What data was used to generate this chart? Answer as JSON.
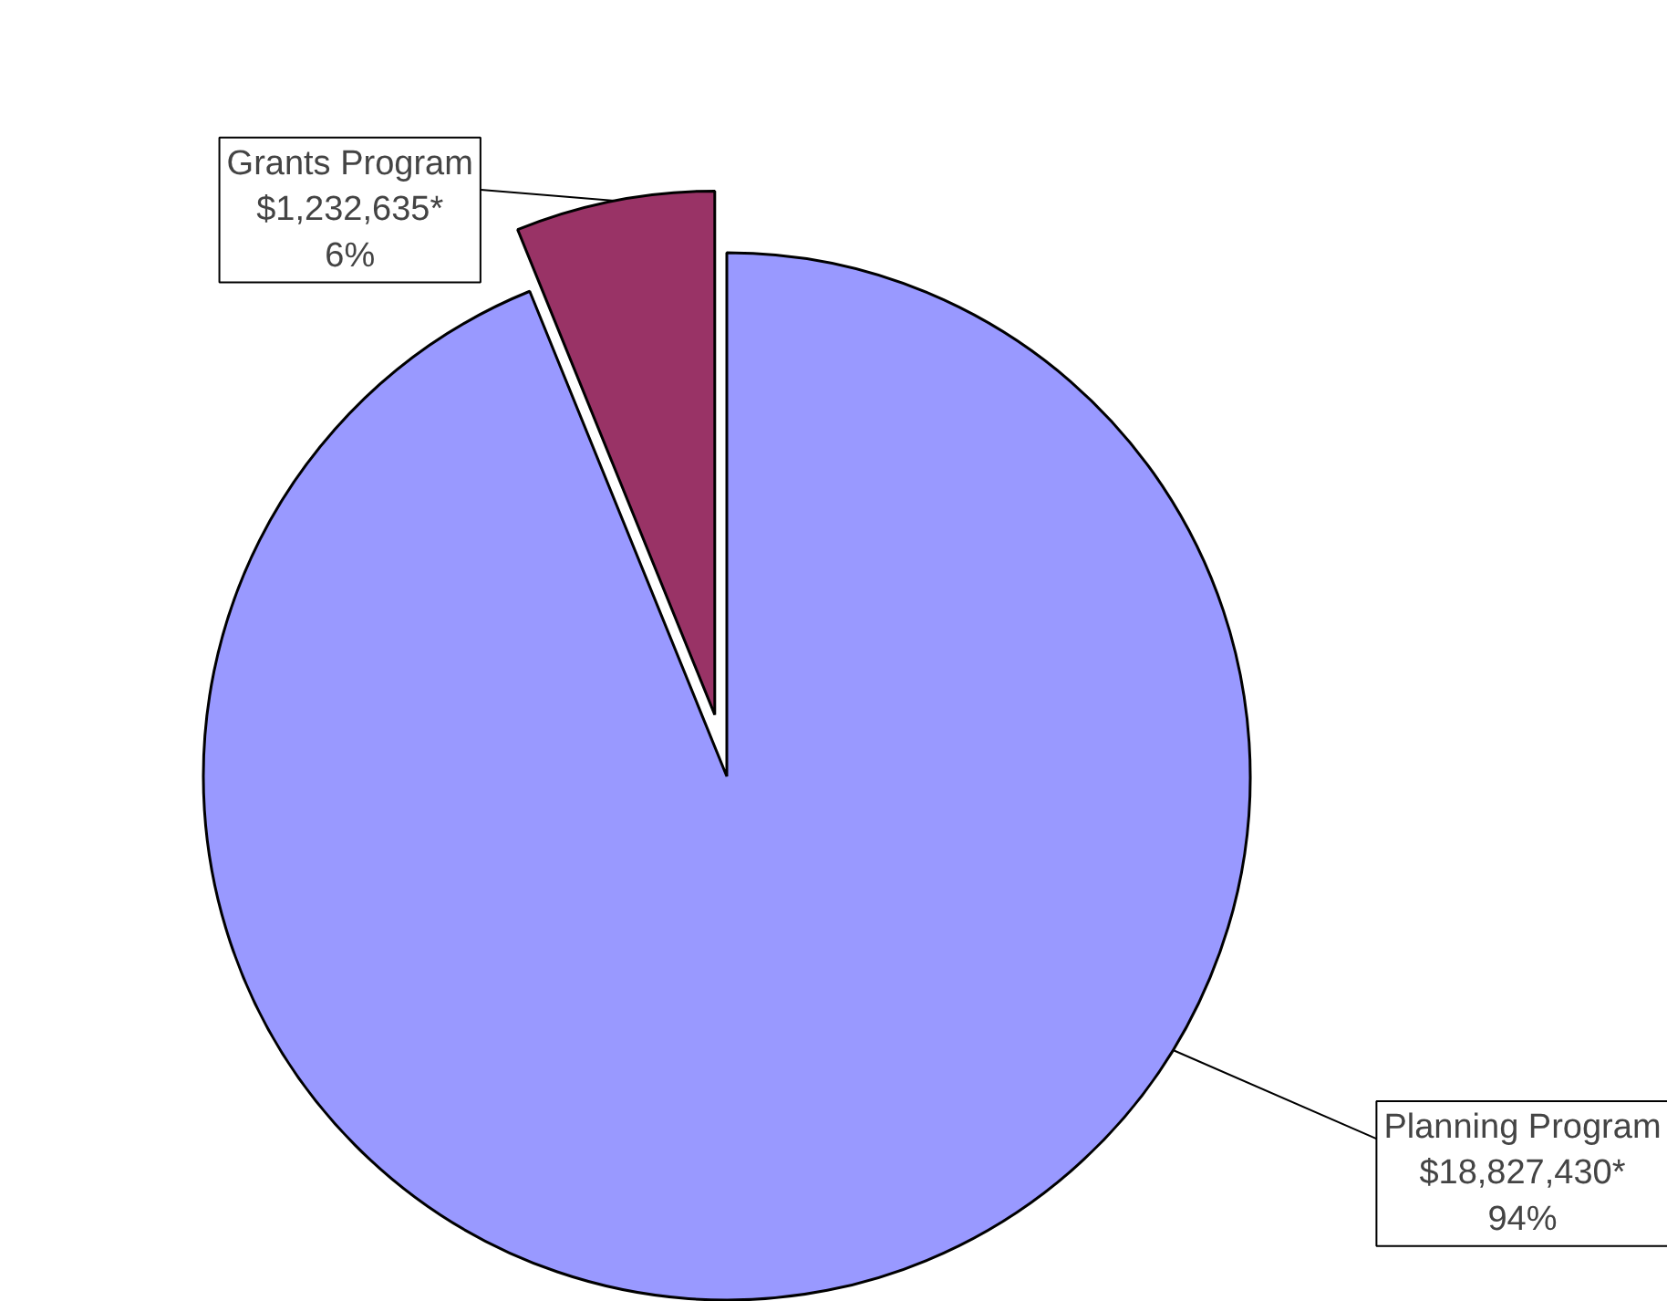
{
  "chart_data": {
    "type": "pie",
    "categories": [
      "Grants Program",
      "Planning Program"
    ],
    "values": [
      1232635,
      18827430
    ],
    "colors": [
      "#993366",
      "#9999ff"
    ],
    "value_labels": [
      "$1,232,635*\n6%",
      "$18,827,430*\n94%"
    ]
  }
}
